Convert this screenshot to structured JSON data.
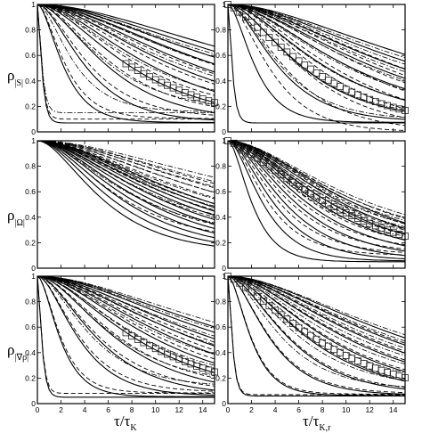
{
  "chart_data": {
    "type": "line",
    "layout": "3 rows x 2 columns",
    "x_range": [
      0,
      15
    ],
    "y_range": [
      0,
      1
    ],
    "x_ticks": [
      "0",
      "2",
      "4",
      "6",
      "8",
      "10",
      "12",
      "14"
    ],
    "y_ticks": [
      "0",
      "0.2",
      "0.4",
      "0.6",
      "0.8",
      "1"
    ],
    "xlabels": [
      {
        "main": "τ/τ",
        "sub": "K"
      },
      {
        "main": "τ/τ",
        "sub": "K,r"
      }
    ],
    "ylabels": [
      {
        "main": "ρ",
        "sub": "|S|"
      },
      {
        "main": "ρ",
        "sub": "|Ω|"
      },
      {
        "main": "ρ",
        "sub": "|∇ρ|"
      }
    ],
    "grid": false,
    "legend": "none",
    "colors": {
      "line": "#000000",
      "marker": "#222222"
    },
    "panels": [
      {
        "id": "S-left",
        "bundles": [
          {
            "style": "solid",
            "count": 12,
            "endpoints": [
              [
                0.5,
                0.07
              ],
              [
                14,
                0.1
              ],
              [
                28,
                0.18
              ]
            ]
          },
          {
            "style": "dashed",
            "count": 9,
            "endpoints": [
              [
                0.5,
                0.1
              ],
              [
                10,
                0.16
              ],
              [
                22,
                0.22
              ]
            ]
          },
          {
            "style": "dashdot",
            "count": 7,
            "endpoints": [
              [
                0.5,
                0.15
              ],
              [
                10,
                0.2
              ],
              [
                22,
                0.27
              ]
            ]
          }
        ],
        "markers": {
          "x": [
            7.5,
            8,
            8.5,
            9,
            9.5,
            10,
            10.5,
            11,
            11.5,
            12,
            12.5,
            13,
            13.5,
            14,
            14.5,
            15
          ],
          "decay": 10.8,
          "floor": 0.01
        }
      },
      {
        "id": "S-right",
        "bundles": [
          {
            "style": "solid",
            "count": 10,
            "endpoints": [
              [
                0.5,
                0.07
              ],
              [
                8,
                0.1
              ],
              [
                24,
                0.18
              ]
            ]
          },
          {
            "style": "dashed",
            "count": 9,
            "endpoints": [
              [
                5,
                0.0
              ],
              [
                10,
                0.07
              ],
              [
                20,
                0.14
              ]
            ]
          },
          {
            "style": "dashdot",
            "count": 8,
            "endpoints": [
              [
                6,
                0.09
              ],
              [
                10,
                0.13
              ],
              [
                22,
                0.22
              ]
            ]
          }
        ],
        "markers": {
          "x": [
            0,
            0.5,
            1,
            1.5,
            2,
            2.5,
            3,
            3.5,
            4,
            4.5,
            5,
            5.5,
            6,
            6.5,
            7,
            7.5,
            8,
            8.5,
            9,
            9.5,
            10,
            10.5,
            11,
            11.5,
            12,
            12.5,
            13,
            13.5,
            14,
            14.5,
            15
          ],
          "decay": 9.0,
          "floor": 0.02
        }
      },
      {
        "id": "Omega-left",
        "bundles": [
          {
            "style": "solid",
            "count": 11,
            "endpoints": [
              [
                7.5,
                0.12
              ],
              [
                10,
                0.15
              ],
              [
                18,
                0.22
              ]
            ]
          },
          {
            "style": "dashed",
            "count": 9,
            "endpoints": [
              [
                9,
                0.2
              ],
              [
                11,
                0.24
              ],
              [
                24,
                0.3
              ]
            ]
          },
          {
            "style": "dashdot",
            "count": 8,
            "endpoints": [
              [
                10,
                0.25
              ],
              [
                12,
                0.28
              ],
              [
                26,
                0.35
              ]
            ]
          }
        ],
        "markers": null
      },
      {
        "id": "Omega-right",
        "bundles": [
          {
            "style": "solid",
            "count": 10,
            "endpoints": [
              [
                2.8,
                0.05
              ],
              [
                9,
                0.13
              ],
              [
                14,
                0.18
              ]
            ]
          },
          {
            "style": "dashed",
            "count": 9,
            "endpoints": [
              [
                4.5,
                0.1
              ],
              [
                10,
                0.16
              ],
              [
                14,
                0.22
              ]
            ]
          },
          {
            "style": "dashdot",
            "count": 8,
            "endpoints": [
              [
                9,
                0.16
              ],
              [
                11,
                0.2
              ],
              [
                14,
                0.24
              ]
            ]
          }
        ],
        "markers": {
          "x": [
            0,
            0.5,
            1,
            1.5,
            2,
            2.5,
            3,
            3.5,
            4,
            4.5,
            5,
            5.5,
            6,
            6.5,
            7,
            7.5,
            8,
            8.5,
            9,
            9.5,
            10,
            10.5,
            11,
            11.5,
            12,
            12.5,
            13,
            13.5,
            14,
            14.5,
            15
          ],
          "decay": 11.5,
          "floor": 0.005
        }
      },
      {
        "id": "gradrho-left",
        "bundles": [
          {
            "style": "solid",
            "count": 12,
            "endpoints": [
              [
                0.5,
                0.05
              ],
              [
                10,
                0.08
              ],
              [
                24,
                0.18
              ]
            ]
          },
          {
            "style": "dashed",
            "count": 9,
            "endpoints": [
              [
                0.5,
                0.08
              ],
              [
                8,
                0.12
              ],
              [
                18,
                0.18
              ]
            ]
          },
          {
            "style": "dashdot",
            "count": 8,
            "endpoints": [
              [
                6,
                0.13
              ],
              [
                10,
                0.16
              ],
              [
                24,
                0.26
              ]
            ]
          }
        ],
        "markers": {
          "x": [
            7.5,
            8,
            8.5,
            9,
            9.5,
            10,
            10.5,
            11,
            11.5,
            12,
            12.5,
            13,
            13.5,
            14,
            14.5,
            15
          ],
          "decay": 11.5,
          "floor": 0.0
        }
      },
      {
        "id": "gradrho-right",
        "bundles": [
          {
            "style": "solid",
            "count": 10,
            "endpoints": [
              [
                0.5,
                0.06
              ],
              [
                8,
                0.09
              ],
              [
                20,
                0.14
              ]
            ]
          },
          {
            "style": "dashed",
            "count": 9,
            "endpoints": [
              [
                0.5,
                0.07
              ],
              [
                8,
                0.1
              ],
              [
                18,
                0.16
              ]
            ]
          },
          {
            "style": "dashdot",
            "count": 8,
            "endpoints": [
              [
                6,
                0.11
              ],
              [
                10,
                0.13
              ],
              [
                20,
                0.18
              ]
            ]
          }
        ],
        "markers": {
          "x": [
            0,
            0.5,
            1,
            1.5,
            2,
            2.5,
            3,
            3.5,
            4,
            4.5,
            5,
            5.5,
            6,
            6.5,
            7,
            7.5,
            8,
            8.5,
            9,
            9.5,
            10,
            10.5,
            11,
            11.5,
            12,
            12.5,
            13,
            13.5,
            14,
            14.5,
            15
          ],
          "decay": 10.0,
          "floor": 0.015
        }
      }
    ]
  }
}
